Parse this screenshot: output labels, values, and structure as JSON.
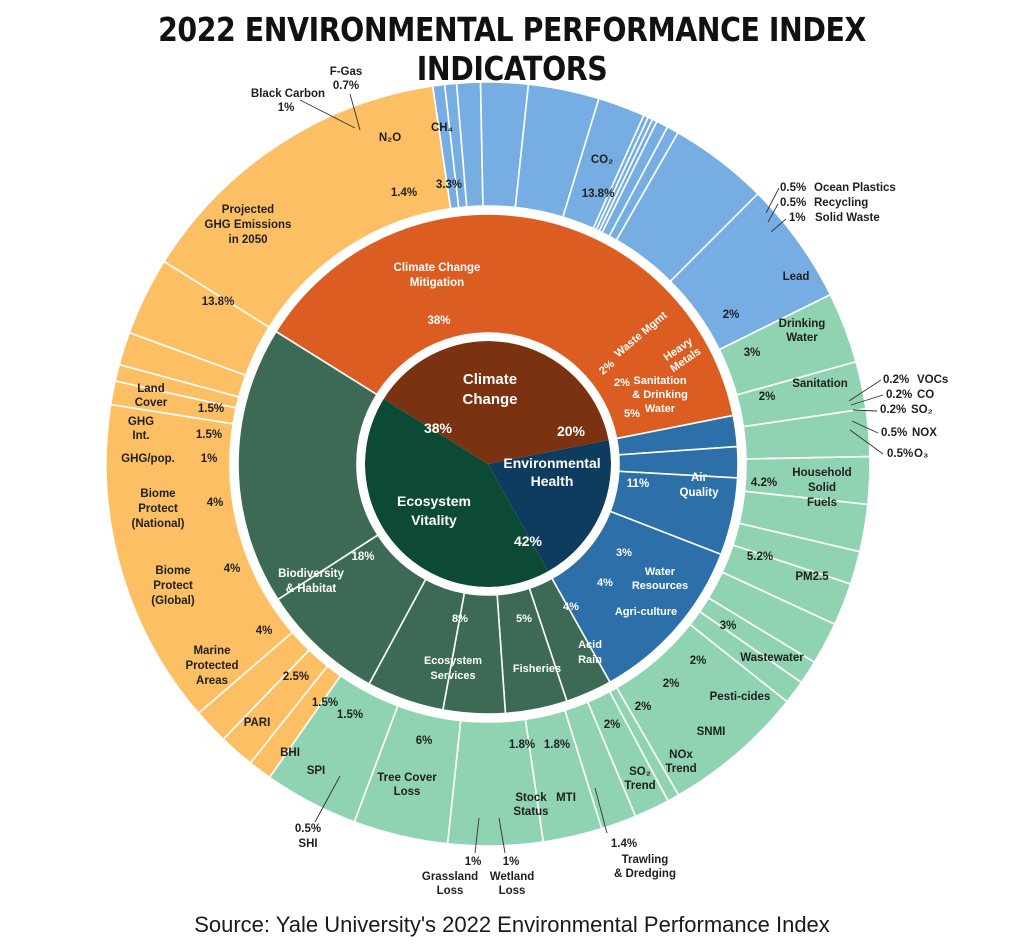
{
  "title": "2022 ENVIRONMENTAL PERFORMANCE INDEX INDICATORS",
  "source": "Source: Yale University's 2022 Environmental Performance Index",
  "chart_data": {
    "type": "sunburst",
    "colors": {
      "climate_core": "#7a3210",
      "climate_mid": "#dc5d21",
      "climate_outer": "#fdbf63",
      "health_core": "#0e3c5f",
      "health_mid": "#2d6fa8",
      "health_outer": "#76aee3",
      "eco_core": "#0d4a36",
      "eco_mid": "#3c6a55",
      "eco_outer": "#90d3b2"
    },
    "core": [
      {
        "name": "Climate Change",
        "value_label": "38%",
        "value": 38
      },
      {
        "name": "Environmental Health",
        "value_label": "20%",
        "value": 20
      },
      {
        "name": "Ecosystem Vitality",
        "value_label": "42%",
        "value": 42
      }
    ],
    "middle": [
      {
        "name": "Climate Change Mitigation",
        "value_label": "38%",
        "value": 38
      },
      {
        "name": "Waste Mgmt",
        "value_label": "2%",
        "value": 2
      },
      {
        "name": "Heavy Metals",
        "value_label": "2%",
        "value": 2
      },
      {
        "name": "Sanitation & Drinking Water",
        "value_label": "5%",
        "value": 5
      },
      {
        "name": "Air Quality",
        "value_label": "11%",
        "value": 11
      },
      {
        "name": "Water Resources",
        "value_label": "3%",
        "value": 3
      },
      {
        "name": "Agri-culture",
        "value_label": "4%",
        "value": 4
      },
      {
        "name": "Acid Rain",
        "value_label": "4%",
        "value": 4
      },
      {
        "name": "Fisheries",
        "value_label": "5%",
        "value": 5
      },
      {
        "name": "Ecosystem Services",
        "value_label": "8%",
        "value": 8
      },
      {
        "name": "Biodiversity & Habitat",
        "value_label": "18%",
        "value": 18
      }
    ],
    "outer": [
      {
        "name": "CO₂",
        "value_label": "13.8%",
        "value": 13.8
      },
      {
        "name": "Ocean Plastics",
        "value_label": "0.5%",
        "value": 0.5
      },
      {
        "name": "Recycling",
        "value_label": "0.5%",
        "value": 0.5
      },
      {
        "name": "Solid Waste",
        "value_label": "1%",
        "value": 1
      },
      {
        "name": "Lead",
        "value_label": "2%",
        "value": 2
      },
      {
        "name": "Drinking Water",
        "value_label": "3%",
        "value": 3
      },
      {
        "name": "Sanitation",
        "value_label": "2%",
        "value": 2
      },
      {
        "name": "VOCs",
        "value_label": "0.2%",
        "value": 0.2
      },
      {
        "name": "CO",
        "value_label": "0.2%",
        "value": 0.2
      },
      {
        "name": "SO₂",
        "value_label": "0.2%",
        "value": 0.2
      },
      {
        "name": "NOX",
        "value_label": "0.5%",
        "value": 0.5
      },
      {
        "name": "O₃",
        "value_label": "0.5%",
        "value": 0.5
      },
      {
        "name": "Household Solid Fuels",
        "value_label": "4.2%",
        "value": 4.2
      },
      {
        "name": "PM2.5",
        "value_label": "5.2%",
        "value": 5.2
      },
      {
        "name": "Wastewater",
        "value_label": "3%",
        "value": 3
      },
      {
        "name": "Pesti-cides",
        "value_label": "2%",
        "value": 2
      },
      {
        "name": "SNMI",
        "value_label": "2%",
        "value": 2
      },
      {
        "name": "NOx Trend",
        "value_label": "2%",
        "value": 2
      },
      {
        "name": "SO₂ Trend",
        "value_label": "2%",
        "value": 2
      },
      {
        "name": "Trawling & Dredging",
        "value_label": "1.4%",
        "value": 1.4
      },
      {
        "name": "MTI",
        "value_label": "1.8%",
        "value": 1.8
      },
      {
        "name": "Stock Status",
        "value_label": "1.8%",
        "value": 1.8
      },
      {
        "name": "Wetland Loss",
        "value_label": "1%",
        "value": 1
      },
      {
        "name": "Grassland Loss",
        "value_label": "1%",
        "value": 1
      },
      {
        "name": "Tree Cover Loss",
        "value_label": "6%",
        "value": 6
      },
      {
        "name": "SHI",
        "value_label": "0.5%",
        "value": 0.5
      },
      {
        "name": "SPI",
        "value_label": "1.5%",
        "value": 1.5
      },
      {
        "name": "BHI",
        "value_label": "1.5%",
        "value": 1.5
      },
      {
        "name": "PARI",
        "value_label": "2.5%",
        "value": 2.5
      },
      {
        "name": "Marine Protected Areas",
        "value_label": "4%",
        "value": 4
      },
      {
        "name": "Biome Protect (Global)",
        "value_label": "4%",
        "value": 4
      },
      {
        "name": "Biome Protect (National)",
        "value_label": "4%",
        "value": 4
      },
      {
        "name": "GHG/pop.",
        "value_label": "1%",
        "value": 1
      },
      {
        "name": "GHG Int.",
        "value_label": "1.5%",
        "value": 1.5
      },
      {
        "name": "Land Cover",
        "value_label": "1.5%",
        "value": 1.5
      },
      {
        "name": "Projected GHG Emissions in 2050",
        "value_label": "13.8%",
        "value": 13.8
      },
      {
        "name": "Black Carbon",
        "value_label": "1%",
        "value": 1
      },
      {
        "name": "F-Gas",
        "value_label": "0.7%",
        "value": 0.7
      },
      {
        "name": "N₂O",
        "value_label": "1.4%",
        "value": 1.4
      },
      {
        "name": "CH₄",
        "value_label": "3.3%",
        "value": 3.3
      }
    ]
  }
}
